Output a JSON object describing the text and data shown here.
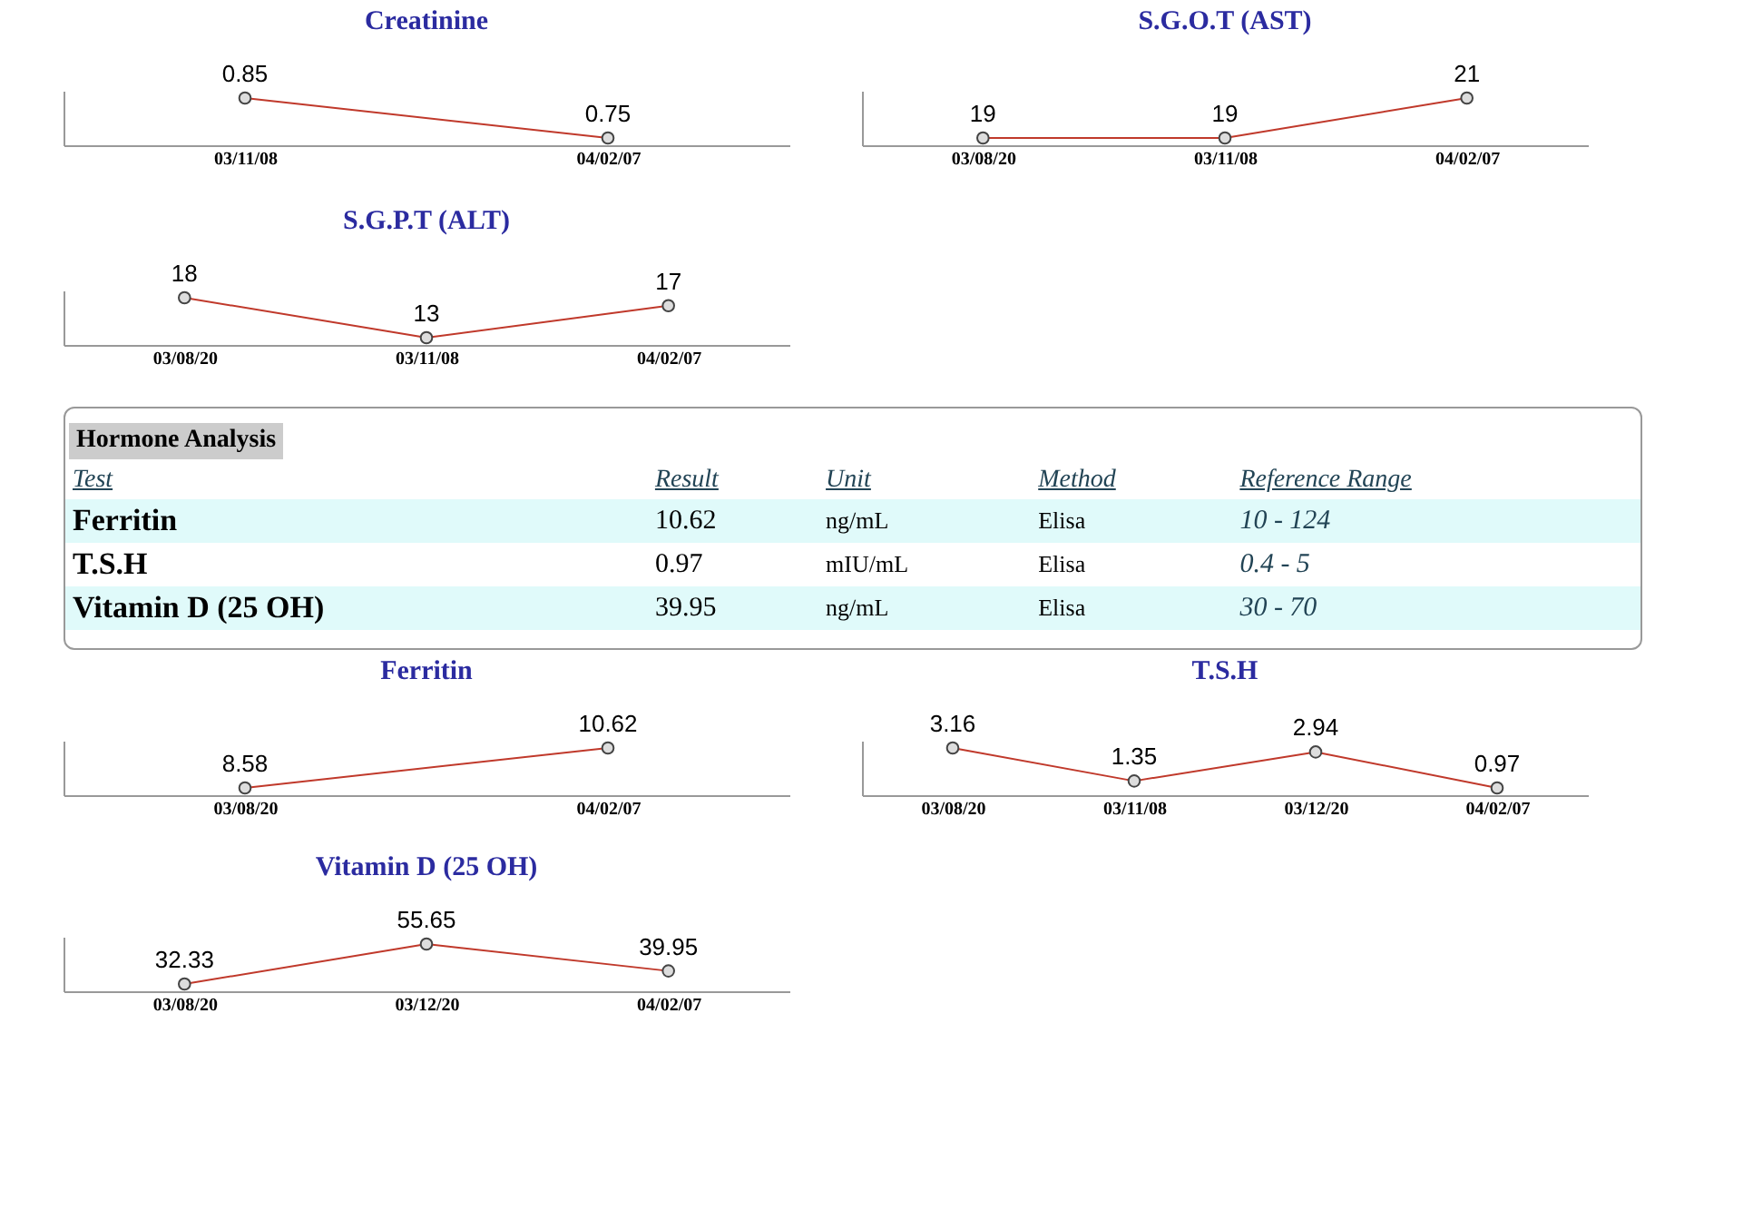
{
  "chart_data": [
    {
      "type": "line",
      "title": "Creatinine",
      "categories": [
        "03/11/08",
        "04/02/07"
      ],
      "values": [
        0.85,
        0.75
      ],
      "color": "#c0392b",
      "marker": "circle",
      "data_labels": true
    },
    {
      "type": "line",
      "title": "S.G.O.T (AST)",
      "categories": [
        "03/08/20",
        "03/11/08",
        "04/02/07"
      ],
      "values": [
        19,
        19,
        21
      ],
      "color": "#c0392b",
      "marker": "circle",
      "data_labels": true
    },
    {
      "type": "line",
      "title": "S.G.P.T (ALT)",
      "categories": [
        "03/08/20",
        "03/11/08",
        "04/02/07"
      ],
      "values": [
        18,
        13,
        17
      ],
      "color": "#c0392b",
      "marker": "circle",
      "data_labels": true
    },
    {
      "type": "other",
      "title": "Hormone Analysis",
      "annotations": [
        "Test",
        "Result",
        "Unit",
        "Method",
        "Reference Range",
        "Ferritin",
        "10.62",
        "ng/mL",
        "Elisa",
        "10 - 124",
        "T.S.H",
        "0.97",
        "mIU/mL",
        "Elisa",
        "0.4 - 5",
        "Vitamin D (25 OH)",
        "39.95",
        "ng/mL",
        "Elisa",
        "30 - 70"
      ]
    },
    {
      "type": "line",
      "title": "Ferritin",
      "categories": [
        "03/08/20",
        "04/02/07"
      ],
      "values": [
        8.58,
        10.62
      ],
      "color": "#c0392b",
      "marker": "circle",
      "data_labels": true
    },
    {
      "type": "line",
      "title": "T.S.H",
      "categories": [
        "03/08/20",
        "03/11/08",
        "03/12/20",
        "04/02/07"
      ],
      "values": [
        3.16,
        1.35,
        2.94,
        0.97
      ],
      "color": "#c0392b",
      "marker": "circle",
      "data_labels": true
    },
    {
      "type": "line",
      "title": "Vitamin D (25 OH)",
      "categories": [
        "03/08/20",
        "03/12/20",
        "04/02/07"
      ],
      "values": [
        32.33,
        55.65,
        39.95
      ],
      "color": "#c0392b",
      "marker": "circle",
      "data_labels": true
    }
  ]
}
